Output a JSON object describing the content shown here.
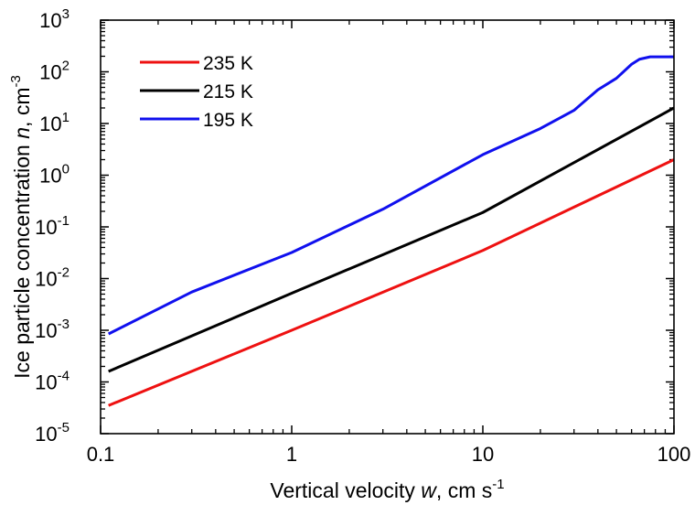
{
  "chart_data": {
    "type": "line",
    "xscale": "log",
    "yscale": "log",
    "xlim": [
      0.1,
      100
    ],
    "ylim": [
      1e-05,
      1000
    ],
    "grid": false,
    "legend_position": "top-left",
    "xlabel": {
      "pre": "Vertical velocity ",
      "var": "w",
      "post": ", cm s",
      "sup": "-1"
    },
    "ylabel": {
      "pre": "Ice particle concentration ",
      "var": "n",
      "post": ", cm",
      "sup": "-3"
    },
    "x_ticks": [
      {
        "value": 0.1,
        "label": "0.1"
      },
      {
        "value": 1,
        "label": "1"
      },
      {
        "value": 10,
        "label": "10"
      },
      {
        "value": 100,
        "label": "100"
      }
    ],
    "y_ticks": [
      {
        "value": 1e-05,
        "base": "10",
        "exp": "-5"
      },
      {
        "value": 0.0001,
        "base": "10",
        "exp": "-4"
      },
      {
        "value": 0.001,
        "base": "10",
        "exp": "-3"
      },
      {
        "value": 0.01,
        "base": "10",
        "exp": "-2"
      },
      {
        "value": 0.1,
        "base": "10",
        "exp": "-1"
      },
      {
        "value": 1,
        "base": "10",
        "exp": "0"
      },
      {
        "value": 10,
        "base": "10",
        "exp": "1"
      },
      {
        "value": 100,
        "base": "10",
        "exp": "2"
      },
      {
        "value": 1000,
        "base": "10",
        "exp": "3"
      }
    ],
    "series": [
      {
        "name": "235 K",
        "color": "#ee1111",
        "x": [
          0.11,
          1,
          10,
          100
        ],
        "y": [
          3.5e-05,
          0.001,
          0.035,
          2.0
        ]
      },
      {
        "name": "215 K",
        "color": "#000000",
        "x": [
          0.11,
          1,
          10,
          100
        ],
        "y": [
          0.00016,
          0.0052,
          0.19,
          20
        ]
      },
      {
        "name": "195 K",
        "color": "#1010ee",
        "x": [
          0.11,
          0.3,
          1,
          3,
          10,
          20,
          30,
          40,
          50,
          60,
          66,
          75,
          100
        ],
        "y": [
          0.00085,
          0.0055,
          0.032,
          0.22,
          2.5,
          8,
          18,
          45,
          75,
          140,
          175,
          195,
          195
        ]
      }
    ]
  }
}
